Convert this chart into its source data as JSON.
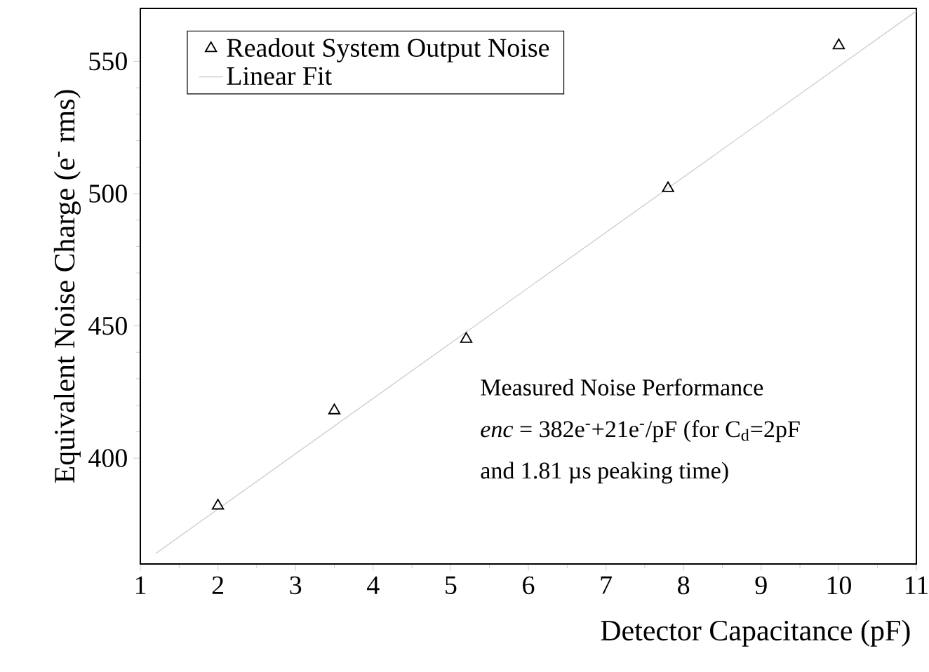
{
  "chart_data": {
    "type": "scatter",
    "xlabel": "Detector Capacitance (pF)",
    "ylabel": "Equivalent Noise Charge (e$^{-}$ rms)",
    "xlim": [
      1,
      11
    ],
    "ylim": [
      360,
      570
    ],
    "xticks": [
      1,
      2,
      3,
      4,
      5,
      6,
      7,
      8,
      9,
      10,
      11
    ],
    "yticks": [
      400,
      450,
      500,
      550
    ],
    "legend": "top left",
    "grid": false,
    "series": [
      {
        "name": "Readout System Output Noise",
        "marker": "triangle",
        "color": "#000000",
        "x": [
          2,
          3.5,
          5.2,
          7.8,
          10
        ],
        "values": [
          382,
          418,
          445,
          502,
          556
        ]
      },
      {
        "name": "Linear Fit",
        "type": "line",
        "marker": "none",
        "color": "#c8c8c8",
        "x": [
          1.2,
          11
        ],
        "values": [
          364,
          569
        ]
      }
    ],
    "annotations": [
      "Measured Noise Performance",
      "*enc* = 382e$^{-}$+21e$^{-}$/pF (for C$_{d}$=2pF",
      "and 1.81 µs peaking time)"
    ]
  }
}
